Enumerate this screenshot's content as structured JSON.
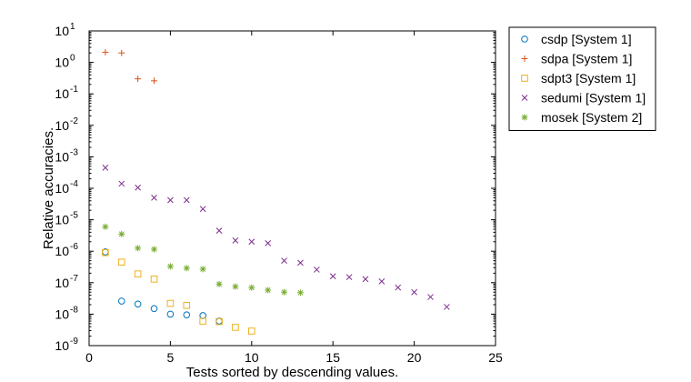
{
  "chart_data": {
    "type": "scatter",
    "title": "",
    "xlabel": "Tests sorted by descending values.",
    "ylabel": "Relative accuracies.",
    "xlim": [
      0,
      25
    ],
    "ylim": [
      1e-09,
      10
    ],
    "yscale": "log",
    "grid": false,
    "legend_position": "outside-top-right",
    "x_ticks": [
      "0",
      "5",
      "10",
      "15",
      "20",
      "25"
    ],
    "y_ticks": [
      {
        "base": "10",
        "exp": "1"
      },
      {
        "base": "10",
        "exp": "0"
      },
      {
        "base": "10",
        "exp": "-1"
      },
      {
        "base": "10",
        "exp": "-2"
      },
      {
        "base": "10",
        "exp": "-3"
      },
      {
        "base": "10",
        "exp": "-4"
      },
      {
        "base": "10",
        "exp": "-5"
      },
      {
        "base": "10",
        "exp": "-6"
      },
      {
        "base": "10",
        "exp": "-7"
      },
      {
        "base": "10",
        "exp": "-8"
      },
      {
        "base": "10",
        "exp": "-9"
      }
    ],
    "series": [
      {
        "name": "csdp [System 1]",
        "marker": "circle",
        "color": "#0072BD",
        "x": [
          1,
          2,
          3,
          4,
          5,
          6,
          7,
          8
        ],
        "y": [
          9.5e-07,
          2.6e-08,
          2.1e-08,
          1.5e-08,
          1e-08,
          9.5e-09,
          9e-09,
          6e-09
        ]
      },
      {
        "name": "sdpa [System 1]",
        "marker": "plus",
        "color": "#D95319",
        "x": [
          1,
          2,
          3,
          4
        ],
        "y": [
          2.1,
          2.0,
          0.3,
          0.26
        ]
      },
      {
        "name": "sdpt3 [System 1]",
        "marker": "square",
        "color": "#EDB120",
        "x": [
          1,
          2,
          3,
          4,
          5,
          6,
          7,
          8,
          9,
          10
        ],
        "y": [
          9e-07,
          4.5e-07,
          1.9e-07,
          1.3e-07,
          2.2e-08,
          1.9e-08,
          6e-09,
          5.8e-09,
          3.8e-09,
          2.9e-09
        ]
      },
      {
        "name": "sedumi [System 1]",
        "marker": "x",
        "color": "#7E2F8E",
        "x": [
          1,
          2,
          3,
          4,
          5,
          6,
          7,
          8,
          9,
          10,
          11,
          12,
          13,
          14,
          15,
          16,
          17,
          18,
          19,
          20,
          21,
          22
        ],
        "y": [
          0.00045,
          0.00014,
          0.000105,
          5e-05,
          4.2e-05,
          4.2e-05,
          2.2e-05,
          4.5e-06,
          2.2e-06,
          2e-06,
          1.8e-06,
          5e-07,
          4.3e-07,
          2.6e-07,
          1.6e-07,
          1.5e-07,
          1.3e-07,
          1.1e-07,
          7e-08,
          5e-08,
          3.5e-08,
          1.7e-08
        ]
      },
      {
        "name": "mosek [System 2]",
        "marker": "asterisk",
        "color": "#77AC30",
        "x": [
          1,
          2,
          3,
          4,
          5,
          6,
          7,
          8,
          9,
          10,
          11,
          12,
          13
        ],
        "y": [
          6e-06,
          3.5e-06,
          1.25e-06,
          1.15e-06,
          3.3e-07,
          2.9e-07,
          2.7e-07,
          9e-08,
          7.5e-08,
          7e-08,
          5.8e-08,
          5e-08,
          4.8e-08
        ]
      }
    ]
  }
}
